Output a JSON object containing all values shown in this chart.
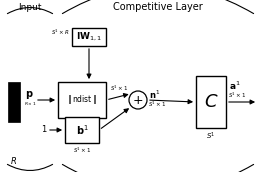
{
  "bg_color": "#ffffff",
  "title_input": "Input",
  "title_layer": "Competitive Layer",
  "label_C": "C",
  "label_R": "R",
  "figsize": [
    2.59,
    1.72
  ],
  "dpi": 100
}
